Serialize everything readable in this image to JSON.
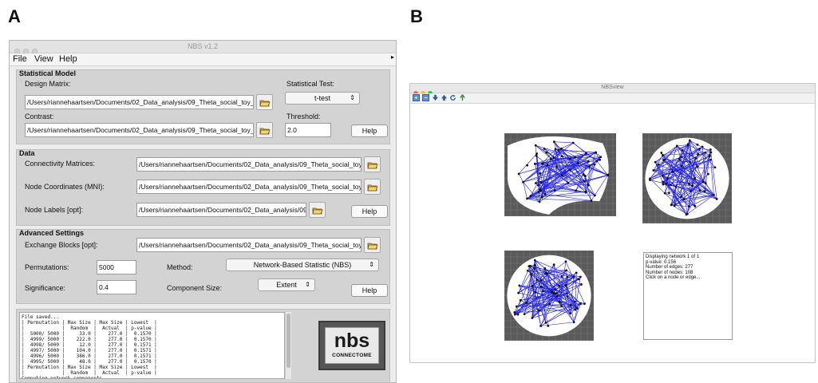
{
  "panel_labels": {
    "a": "A",
    "b": "B"
  },
  "nbs_window": {
    "title": "NBS v1.2",
    "menu": [
      "File",
      "View",
      "Help"
    ],
    "statistical_model": {
      "title": "Statistical Model",
      "design_matrix_label": "Design Matrix:",
      "design_matrix_value": "/Users/riannehaartsen/Documents/02_Data_analysis/09_Theta_social_toy_hand",
      "contrast_label": "Contrast:",
      "contrast_value": "/Users/riannehaartsen/Documents/02_Data_analysis/09_Theta_social_toy_hand",
      "test_label": "Statistical Test:",
      "test_value": "t-test",
      "threshold_label": "Threshold:",
      "threshold_value": "2.0",
      "help": "Help"
    },
    "data": {
      "title": "Data",
      "connectivity_label": "Connectivity Matrices:",
      "connectivity_value": "/Users/riannehaartsen/Documents/02_Data_analysis/09_Theta_social_toy_hand",
      "coords_label": "Node Coordinates (MNI):",
      "coords_value": "/Users/riannehaartsen/Documents/02_Data_analysis/09_Theta_social_toy_hand",
      "labels_label": "Node Labels [opt]:",
      "labels_value": "/Users/riannehaartsen/Documents/02_Data_analysis/09_Th",
      "help": "Help"
    },
    "advanced": {
      "title": "Advanced Settings",
      "exchange_label": "Exchange Blocks [opt]:",
      "exchange_value": "/Users/riannehaartsen/Documents/02_Data_analysis/09_Theta_social_toy_hand",
      "permutations_label": "Permutations:",
      "permutations_value": "5000",
      "method_label": "Method:",
      "method_value": "Network-Based Statistic (NBS)",
      "significance_label": "Significance:",
      "significance_value": "0.4",
      "component_label": "Component Size:",
      "component_value": "Extent",
      "help": "Help"
    },
    "log": "File saved...\n| Permutation | Max Size | Max Size | Lowest  |\n|             |  Random  |  Actual  | p-value |\n|  5000/ 5000 |     33.0 |    277.0 |  0.1570 |\n|  4999/ 5000 |    222.0 |    277.0 |  0.1570 |\n|  4998/ 5000 |     12.0 |    277.0 |  0.1571 |\n|  4997/ 5000 |    104.0 |    277.0 |  0.1571 |\n|  4996/ 5000 |    386.0 |    277.0 |  0.1571 |\n|  4995/ 5000 |     48.0 |    277.0 |  0.1570 |\n| Permutation | Max Size | Max Size | Lowest  |\n|             |  Random  |  Actual  | p-value |\nComputing network components...",
    "logo": {
      "word": "nbs",
      "sub": "CONNECTOME"
    }
  },
  "nbsview_window": {
    "title": "NBSview",
    "toolbar_icons": [
      "zoom-in-icon",
      "zoom-out-icon",
      "arrow-down-icon",
      "arrow-up-icon",
      "rotate-icon",
      "pan-icon"
    ],
    "info": [
      "Displaying network 1 of 1",
      "p-value: 0.156",
      "Number of edges: 277",
      "Number of nodes: 108",
      "Click on a node or edge..."
    ],
    "colors": {
      "edge": "#2222dd",
      "node": "#111111",
      "grid_bg": "#5a5a5a",
      "brain": "#ffffff"
    }
  }
}
